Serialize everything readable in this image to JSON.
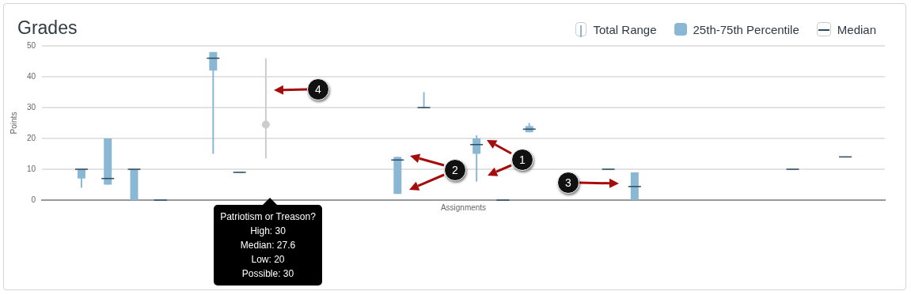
{
  "chart_data": {
    "type": "box",
    "title": "Grades",
    "xlabel": "Assignments",
    "ylabel": "Points",
    "categories": [
      null,
      null,
      null,
      null,
      null,
      null,
      null,
      null,
      null,
      null,
      null,
      null,
      null,
      null,
      null,
      null,
      null,
      null,
      null,
      null,
      null,
      null,
      null,
      null,
      null,
      null,
      null,
      null,
      null,
      null,
      null,
      null
    ],
    "series": [
      {
        "color": "#8ab8d4",
        "boxes": [
          null,
          {
            "low": 4,
            "q1": 7,
            "median": 10,
            "q3": 10,
            "high": 10
          },
          {
            "low": 5,
            "q1": 5,
            "median": 7,
            "q3": 20,
            "high": 20
          },
          {
            "low": 0,
            "q1": 0,
            "median": 10,
            "q3": 10,
            "high": 10
          },
          {
            "low": 0,
            "q1": 0,
            "median": 0,
            "q3": 0,
            "high": 0
          },
          null,
          {
            "low": 15,
            "q1": 42,
            "median": 46,
            "q3": 48,
            "high": 48
          },
          {
            "low": 9,
            "q1": 9,
            "median": 9,
            "q3": 9,
            "high": 9
          },
          null,
          null,
          null,
          null,
          null,
          {
            "low": 2,
            "q1": 2,
            "median": 13,
            "q3": 14,
            "high": 14
          },
          {
            "low": 30,
            "q1": 30,
            "median": 30,
            "q3": 30,
            "high": 35
          },
          null,
          {
            "low": 6,
            "q1": 15,
            "median": 18,
            "q3": 20,
            "high": 21
          },
          {
            "low": 0,
            "q1": 0,
            "median": 0,
            "q3": 0,
            "high": 0
          },
          {
            "low": 22,
            "q1": 22,
            "median": 23,
            "q3": 24,
            "high": 25
          },
          null,
          null,
          {
            "low": 10,
            "q1": 10,
            "median": 10,
            "q3": 10,
            "high": 10
          },
          {
            "low": 0,
            "q1": 0,
            "median": 4.4,
            "q3": 9,
            "high": 9
          },
          null,
          null,
          null,
          null,
          null,
          {
            "low": 10,
            "q1": 10,
            "median": 10,
            "q3": 10,
            "high": 10
          },
          null,
          {
            "low": 14,
            "q1": 14,
            "median": 14,
            "q3": 14,
            "high": 14
          },
          null
        ]
      },
      {
        "color": "#cccccc",
        "marker": "circle",
        "boxes": [
          null,
          null,
          null,
          null,
          null,
          null,
          null,
          null,
          {
            "low": 13.5,
            "q1": 24.5,
            "median": 24.5,
            "q3": 24.5,
            "high": 46,
            "mean": 24.5
          },
          null,
          null,
          null,
          null,
          null,
          null,
          null,
          null,
          null,
          null,
          null,
          null,
          null,
          null,
          null,
          null,
          null,
          null,
          null,
          null,
          null,
          null,
          null
        ]
      }
    ],
    "ylim": [
      0,
      50
    ],
    "yticks": [
      0,
      10,
      20,
      30,
      40,
      50
    ],
    "grid": "y",
    "annotations": [
      "Total Range",
      "25th-75th Percentile",
      "Median",
      "Patriotism or Treason?",
      "High: 30",
      "Median: 27.6",
      "Low: 20",
      "Possible: 30",
      "1",
      "2",
      "3",
      "4"
    ]
  }
}
